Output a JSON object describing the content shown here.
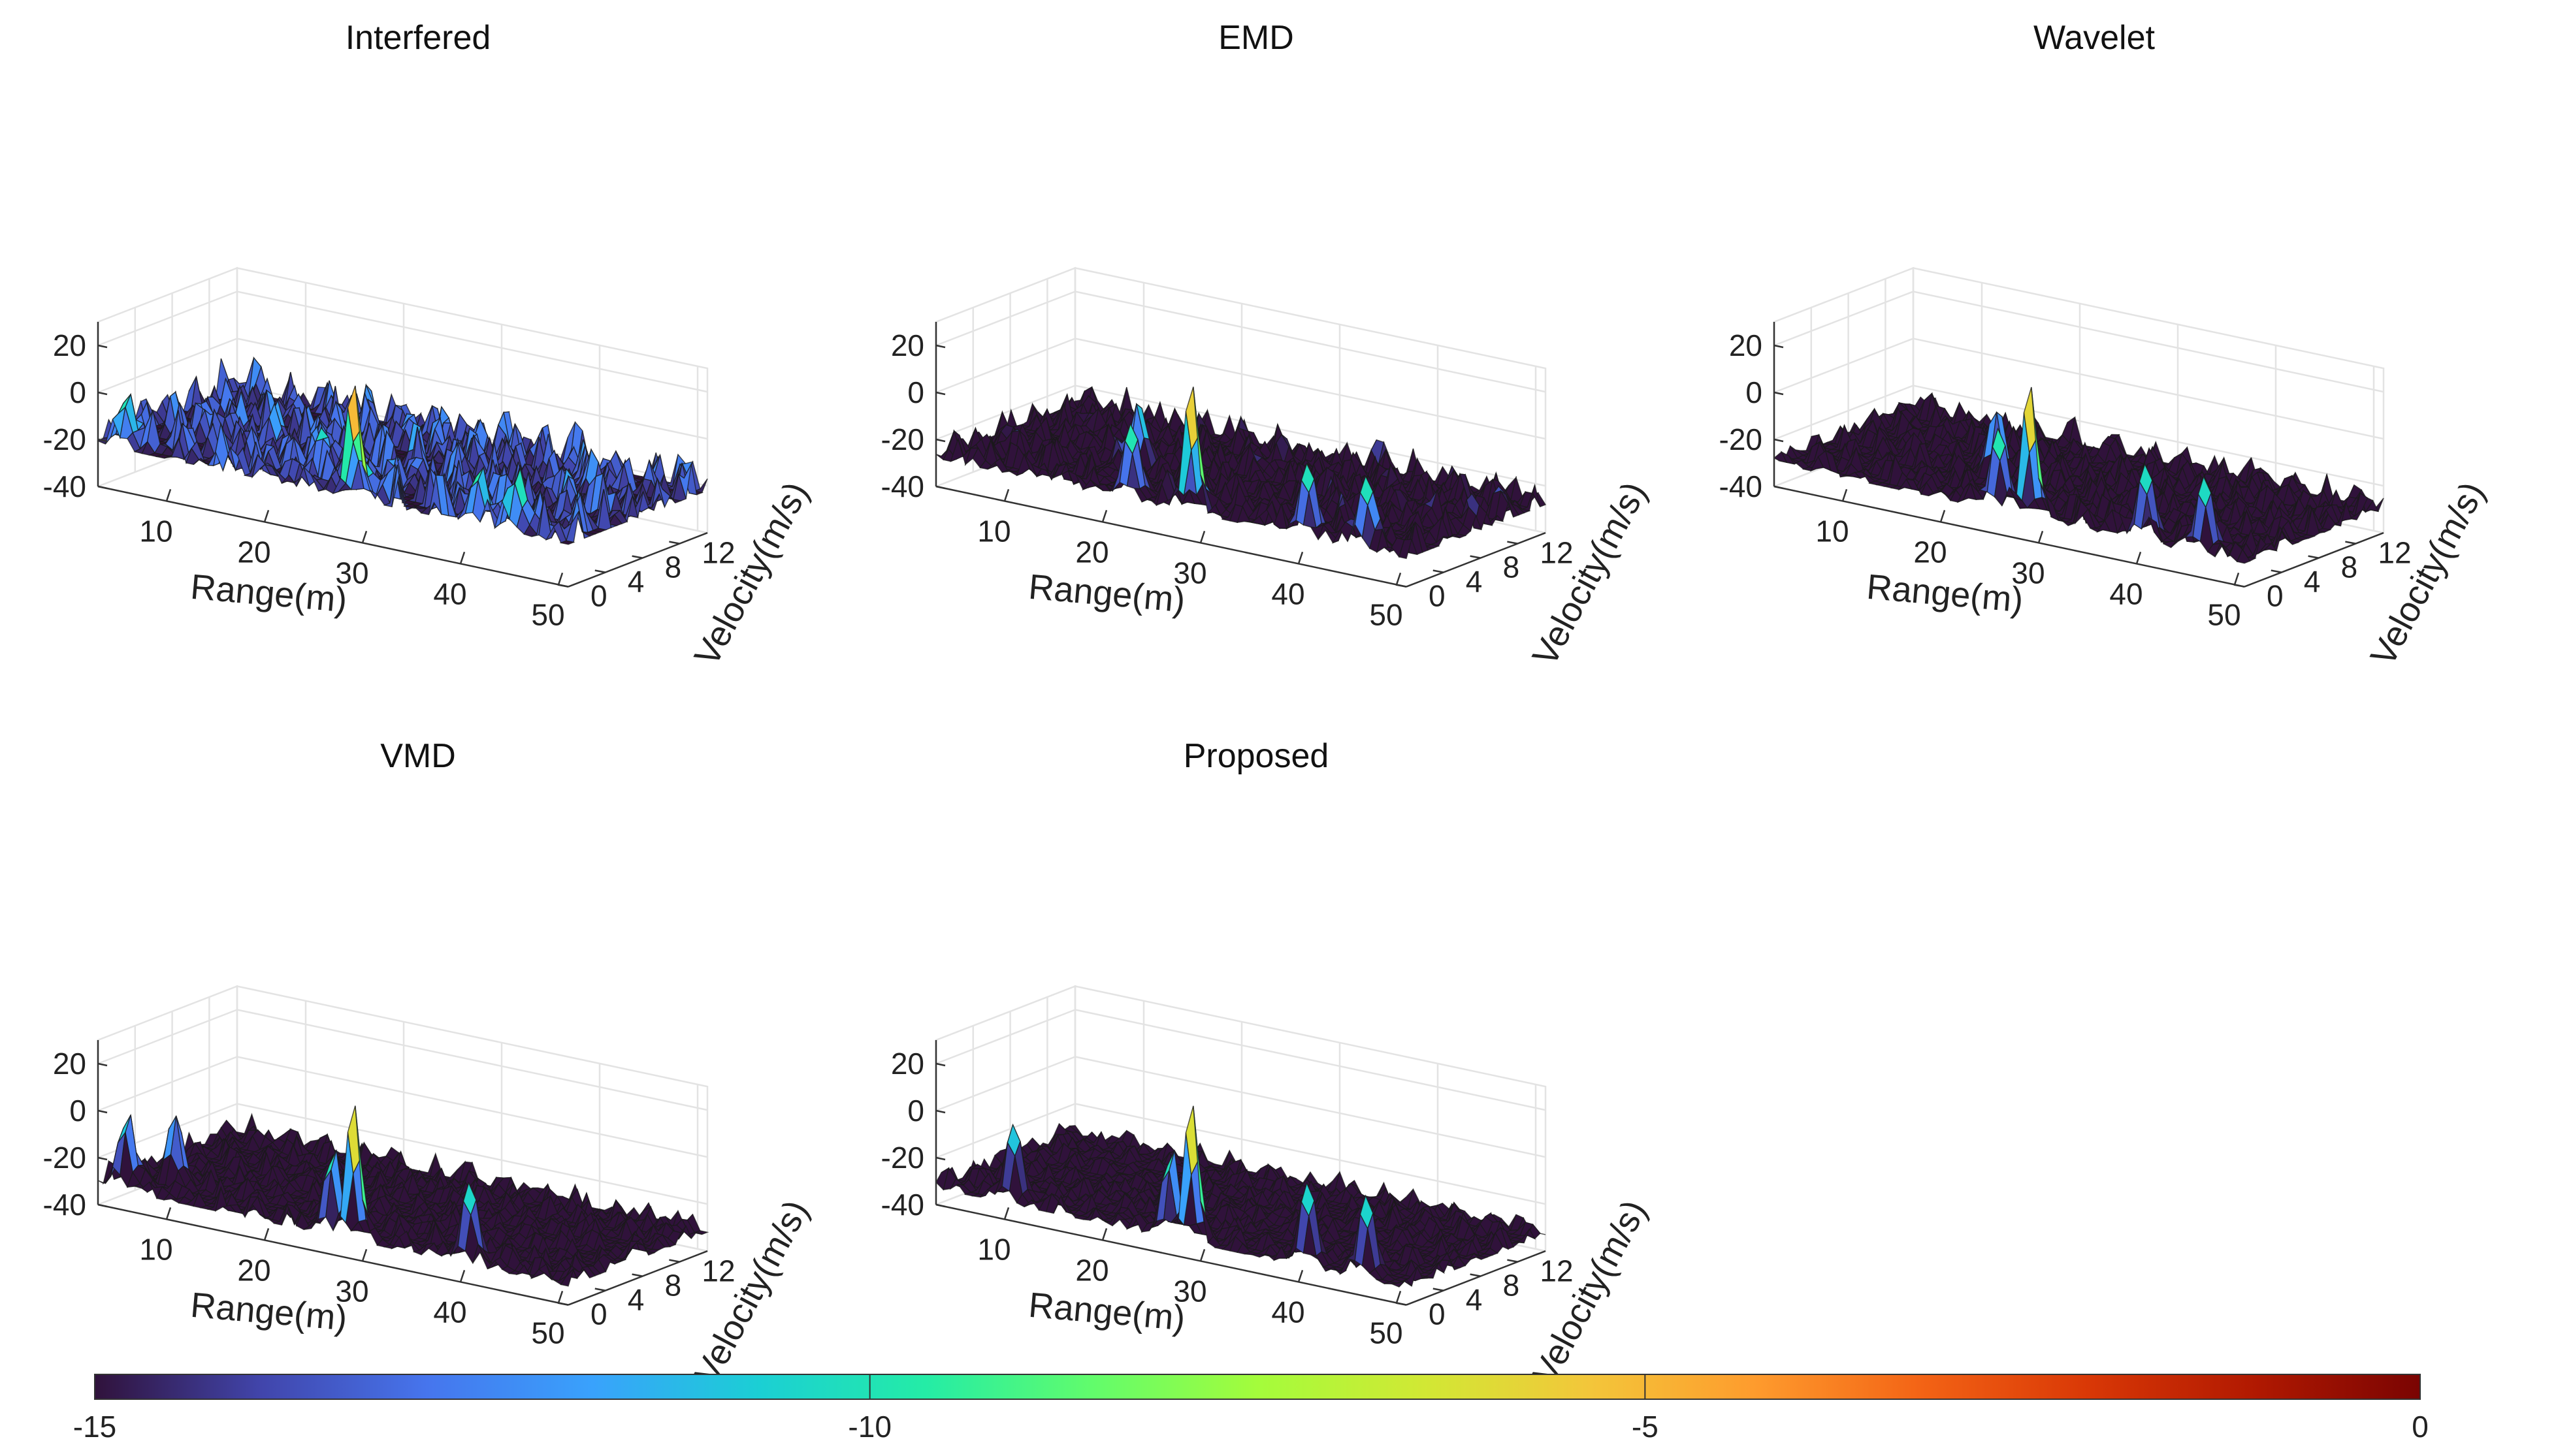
{
  "chart_data": [
    {
      "type": "surface3d",
      "title": "Interfered",
      "xlabel": "Range(m)",
      "ylabel": "Velocity(m/s)",
      "x_ticks": [
        10,
        20,
        30,
        40,
        50
      ],
      "y_ticks": [
        0,
        4,
        8,
        12
      ],
      "z_ticks": [
        20,
        0,
        -20,
        -40
      ],
      "xlim": [
        3,
        51
      ],
      "ylim": [
        0,
        15
      ],
      "zlim": [
        -40,
        30
      ],
      "noise_floor": -22,
      "noise_amplitude": 20,
      "peaks": [
        {
          "range": 29,
          "velocity": 0,
          "height": 30
        },
        {
          "range": 5,
          "velocity": 1,
          "height": 2
        },
        {
          "range": 41,
          "velocity": 1,
          "height": 3
        },
        {
          "range": 45,
          "velocity": 1,
          "height": 4
        }
      ]
    },
    {
      "type": "surface3d",
      "title": "EMD",
      "xlabel": "Range(m)",
      "ylabel": "Velocity(m/s)",
      "x_ticks": [
        10,
        20,
        30,
        40,
        50
      ],
      "y_ticks": [
        0,
        4,
        8,
        12
      ],
      "z_ticks": [
        20,
        0,
        -20,
        -40
      ],
      "xlim": [
        3,
        51
      ],
      "ylim": [
        0,
        15
      ],
      "zlim": [
        -40,
        30
      ],
      "noise_floor": -28,
      "noise_amplitude": 14,
      "peaks": [
        {
          "range": 29,
          "velocity": 0,
          "height": 30
        },
        {
          "range": 22,
          "velocity": 1,
          "height": 5
        },
        {
          "range": 40,
          "velocity": 1,
          "height": 4
        },
        {
          "range": 46,
          "velocity": 1,
          "height": 4
        },
        {
          "range": 18,
          "velocity": 6,
          "height": 2
        }
      ]
    },
    {
      "type": "surface3d",
      "title": "Wavelet",
      "xlabel": "Range(m)",
      "ylabel": "Velocity(m/s)",
      "x_ticks": [
        10,
        20,
        30,
        40,
        50
      ],
      "y_ticks": [
        0,
        4,
        8,
        12
      ],
      "z_ticks": [
        20,
        0,
        -20,
        -40
      ],
      "xlim": [
        3,
        51
      ],
      "ylim": [
        0,
        15
      ],
      "zlim": [
        -40,
        30
      ],
      "noise_floor": -30,
      "noise_amplitude": 12,
      "peaks": [
        {
          "range": 29,
          "velocity": 0,
          "height": 30
        },
        {
          "range": 25,
          "velocity": 1,
          "height": 6
        },
        {
          "range": 40,
          "velocity": 1,
          "height": 4
        },
        {
          "range": 46,
          "velocity": 1,
          "height": 4
        },
        {
          "range": 20,
          "velocity": 6,
          "height": 3
        }
      ]
    },
    {
      "type": "surface3d",
      "title": "VMD",
      "xlabel": "Range(m)",
      "ylabel": "Velocity(m/s)",
      "x_ticks": [
        10,
        20,
        30,
        40,
        50
      ],
      "y_ticks": [
        0,
        4,
        8,
        12
      ],
      "z_ticks": [
        20,
        0,
        -20,
        -40
      ],
      "xlim": [
        3,
        51
      ],
      "ylim": [
        0,
        15
      ],
      "zlim": [
        -40,
        30
      ],
      "noise_floor": -32,
      "noise_amplitude": 10,
      "peaks": [
        {
          "range": 29,
          "velocity": 0,
          "height": 30
        },
        {
          "range": 26,
          "velocity": 1,
          "height": 6
        },
        {
          "range": 5,
          "velocity": 1,
          "height": 2
        },
        {
          "range": 40,
          "velocity": 1,
          "height": 4
        },
        {
          "range": 8,
          "velocity": 3,
          "height": 1
        }
      ]
    },
    {
      "type": "surface3d",
      "title": "Proposed",
      "xlabel": "Range(m)",
      "ylabel": "Velocity(m/s)",
      "x_ticks": [
        10,
        20,
        30,
        40,
        50
      ],
      "y_ticks": [
        0,
        4,
        8,
        12
      ],
      "z_ticks": [
        20,
        0,
        -20,
        -40
      ],
      "xlim": [
        3,
        51
      ],
      "ylim": [
        0,
        15
      ],
      "zlim": [
        -40,
        30
      ],
      "noise_floor": -33,
      "noise_amplitude": 9,
      "peaks": [
        {
          "range": 29,
          "velocity": 0,
          "height": 30
        },
        {
          "range": 26,
          "velocity": 1,
          "height": 6
        },
        {
          "range": 10,
          "velocity": 1,
          "height": 2
        },
        {
          "range": 40,
          "velocity": 1,
          "height": 4
        },
        {
          "range": 46,
          "velocity": 1,
          "height": 4
        }
      ]
    }
  ],
  "colorbar": {
    "ticks": [
      -15,
      -10,
      -5,
      0
    ],
    "tick_labels": [
      "-15",
      "-10",
      "-5",
      "0"
    ],
    "range": [
      -15,
      0
    ],
    "colormap": [
      "#30123b",
      "#4145ab",
      "#4675ed",
      "#39a2fc",
      "#1bcfd4",
      "#24eca6",
      "#61fc6c",
      "#a4fc3b",
      "#d1e834",
      "#f3c63a",
      "#fe9b2d",
      "#f36315",
      "#d93806",
      "#b11901",
      "#7a0402"
    ]
  }
}
